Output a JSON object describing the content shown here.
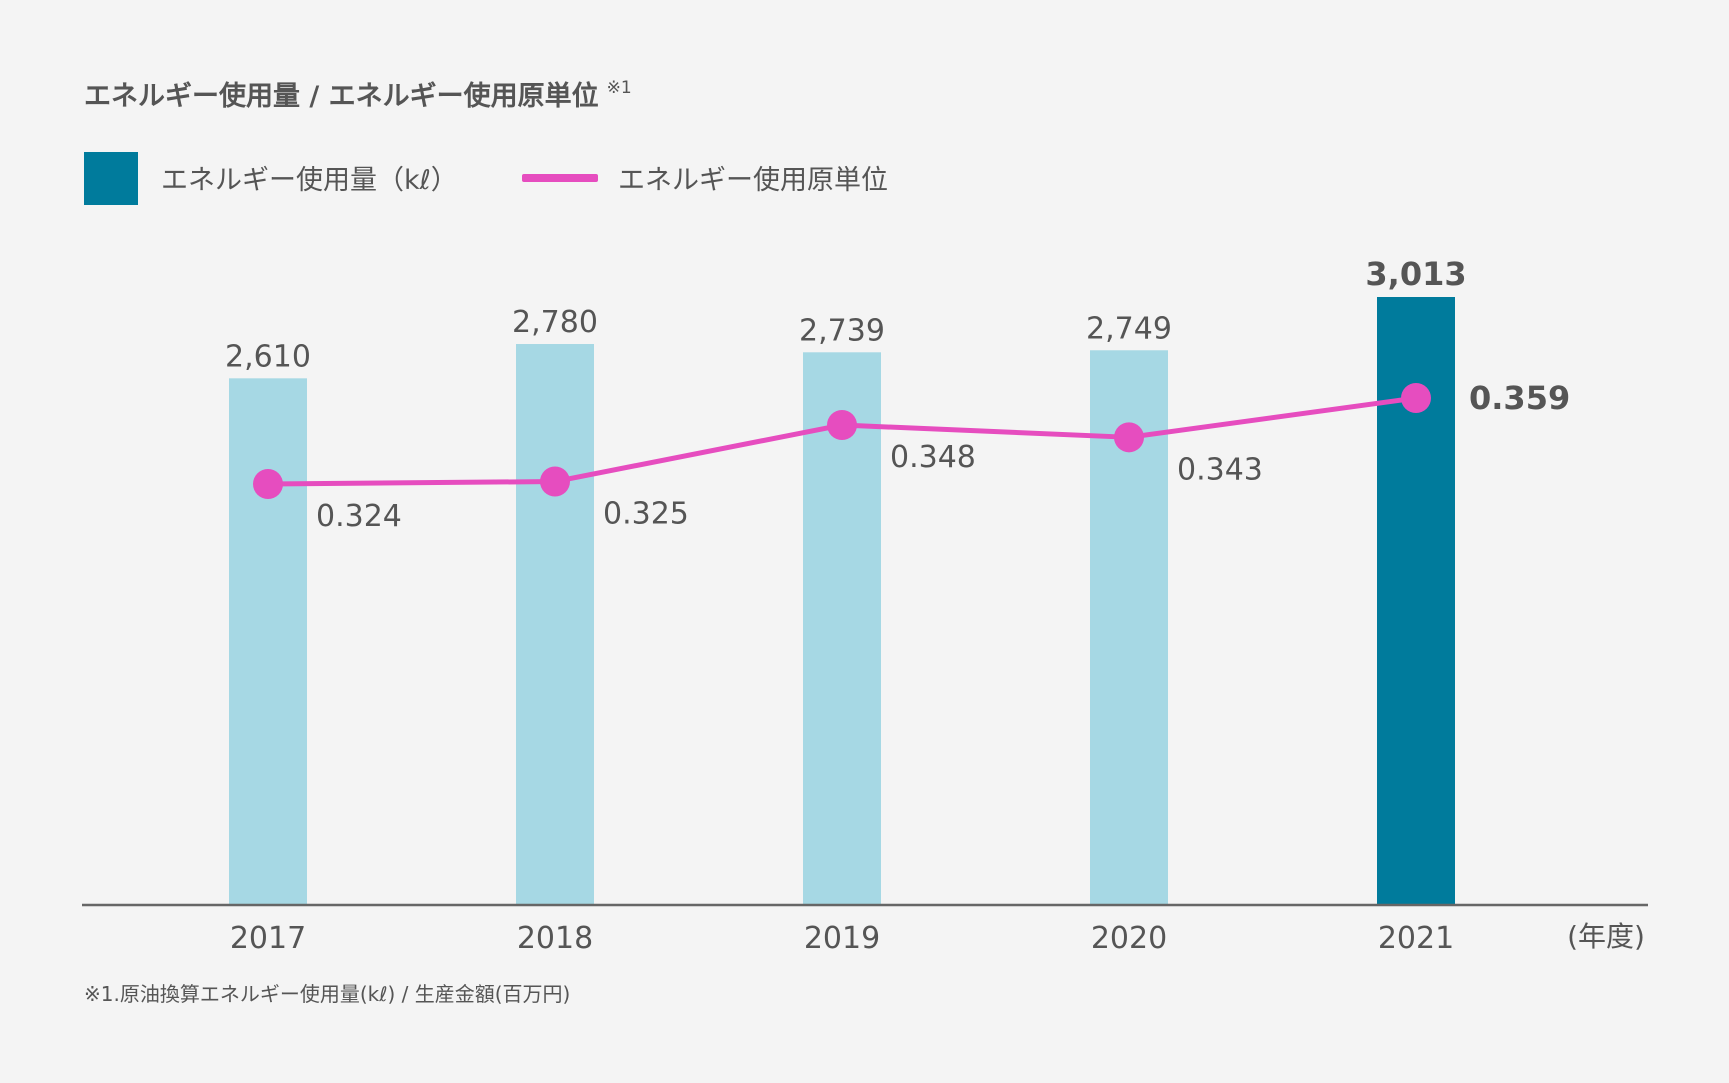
{
  "colors": {
    "background": "#f4f4f4",
    "bar": "#a6d8e4",
    "bar_highlight": "#007b9c",
    "line": "#e64dbf",
    "text": "#555555",
    "axis": "#666666"
  },
  "header": {
    "title": "エネルギー使用量 / エネルギー使用原単位",
    "title_note": "※1"
  },
  "legend": {
    "bar_label": "エネルギー使用量（kℓ）",
    "line_label": "エネルギー使用原単位"
  },
  "chart_data": {
    "type": "bar",
    "title": "エネルギー使用量 / エネルギー使用原単位",
    "categories": [
      "2017",
      "2018",
      "2019",
      "2020",
      "2021"
    ],
    "xlabel": "(年度)",
    "series": [
      {
        "name": "エネルギー使用量（kℓ）",
        "type": "bar",
        "values": [
          2610,
          2780,
          2739,
          2749,
          3013
        ],
        "labels": [
          "2,610",
          "2,780",
          "2,739",
          "2,749",
          "3,013"
        ],
        "highlight_index": 4
      },
      {
        "name": "エネルギー使用原単位",
        "type": "line",
        "values": [
          0.324,
          0.325,
          0.348,
          0.343,
          0.359
        ],
        "labels": [
          "0.324",
          "0.325",
          "0.348",
          "0.343",
          "0.359"
        ],
        "highlight_index": 4
      }
    ],
    "bar_ylim": [
      0,
      3300
    ],
    "line_ylim": [
      0.2,
      0.4
    ]
  },
  "footnote": "※1.原油換算エネルギー使用量(kℓ) / 生産金額(百万円)"
}
